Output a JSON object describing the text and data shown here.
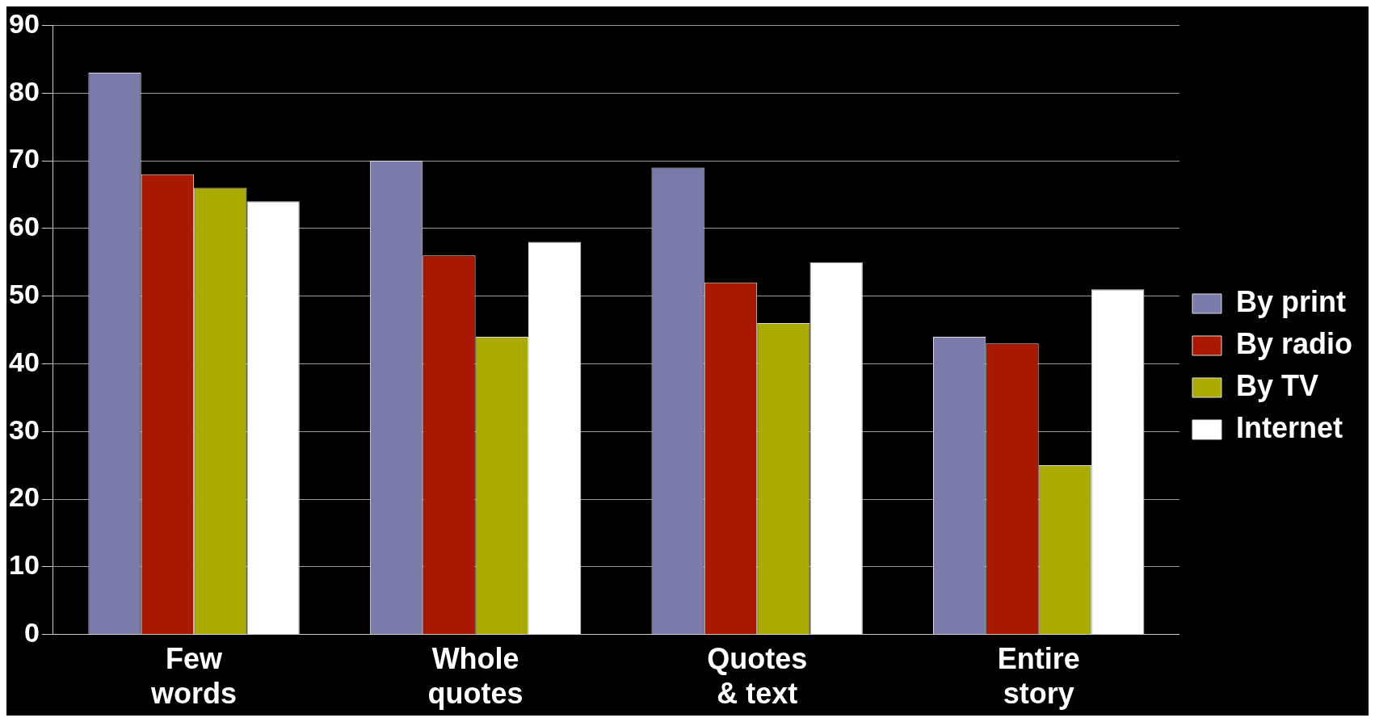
{
  "chart_data": {
    "type": "bar",
    "categories": [
      "Few words",
      "Whole quotes",
      "Quotes & text",
      "Entire story"
    ],
    "series": [
      {
        "name": "By print",
        "color": "#7b7bab",
        "values": [
          83,
          70,
          69,
          44
        ]
      },
      {
        "name": "By radio",
        "color": "#aa1800",
        "values": [
          68,
          56,
          52,
          43
        ]
      },
      {
        "name": "By TV",
        "color": "#aaaa00",
        "values": [
          66,
          44,
          46,
          25
        ]
      },
      {
        "name": "Internet",
        "color": "#ffffff",
        "values": [
          64,
          58,
          55,
          51
        ]
      }
    ],
    "ylim": [
      0,
      90
    ],
    "yticks": [
      0,
      10,
      20,
      30,
      40,
      50,
      60,
      70,
      80,
      90
    ],
    "grid": "y",
    "legend": "right"
  }
}
